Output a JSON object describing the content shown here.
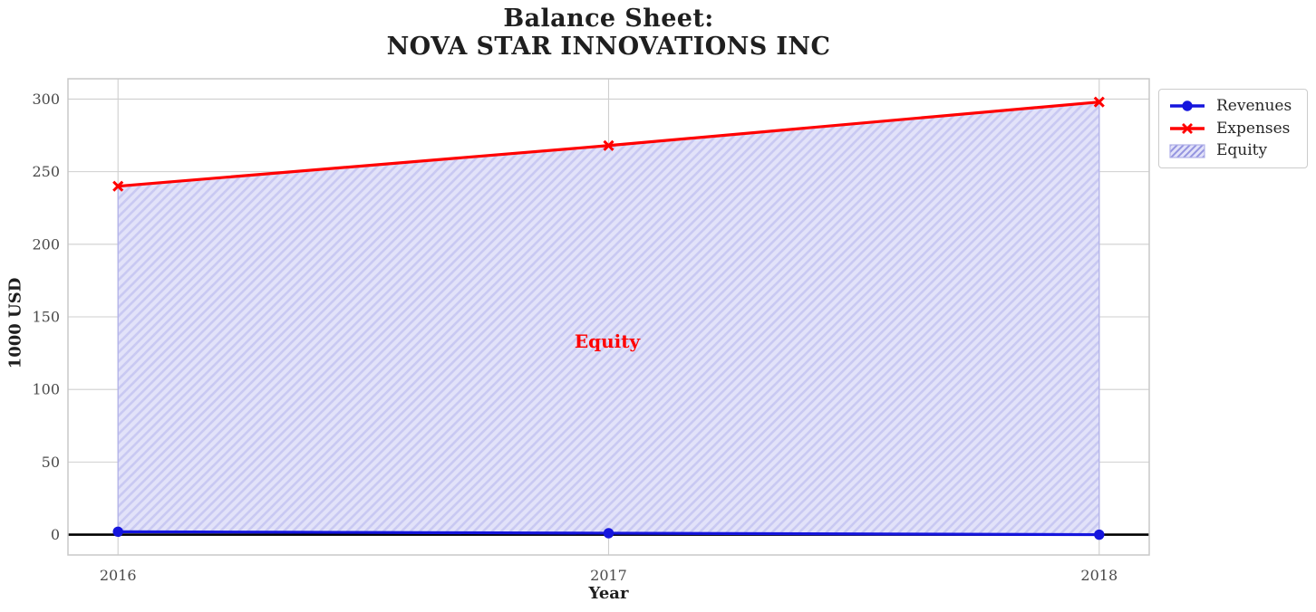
{
  "title": {
    "line1": "Balance Sheet:",
    "line2": "NOVA STAR INNOVATIONS INC"
  },
  "x_axis": {
    "label": "Year"
  },
  "y_axis": {
    "label": "1000 USD"
  },
  "annotation": {
    "text": "Equity"
  },
  "legend": {
    "position": "upper right",
    "items": [
      {
        "label": "Revenues",
        "swatch": "blue-line-circle-marker"
      },
      {
        "label": "Expenses",
        "swatch": "red-line-x-marker"
      },
      {
        "label": "Equity",
        "swatch": "hatched-patch"
      }
    ]
  },
  "colors": {
    "revenues": "#1515dd",
    "expenses": "#ff0000",
    "equity_fill": "#e2e2f9",
    "equity_hatch": "#c9c9f2",
    "equity_edge": "#b2b2e8",
    "legend_hatch": "#9494e0",
    "annotation_text": "#ff0000",
    "grid": "#cfcfcf",
    "axis_border": "#c8c8c8",
    "tick_label": "#4a4a4a",
    "title_text": "#1f1f1f",
    "zero_line": "#000000"
  },
  "chart_data": {
    "type": "line",
    "title": "Balance Sheet:\nNOVA STAR INNOVATIONS INC",
    "xlabel": "Year",
    "ylabel": "1000 USD",
    "x": [
      2016,
      2017,
      2018
    ],
    "series": [
      {
        "name": "Revenues",
        "values": [
          2,
          1,
          0
        ],
        "color": "#1515dd",
        "marker": "circle"
      },
      {
        "name": "Expenses",
        "values": [
          240,
          268,
          298
        ],
        "color": "#ff0000",
        "marker": "x"
      }
    ],
    "area": {
      "name": "Equity",
      "lower_series": "Revenues",
      "upper_series": "Expenses",
      "values": [
        238,
        267,
        298
      ],
      "fill_color": "#e2e2f9",
      "hatch": "/",
      "hatch_color": "#c9c9f2",
      "edge_color": "#b2b2e8"
    },
    "annotation": {
      "text": "Equity",
      "x": 2017,
      "y": 133,
      "color": "#ff0000"
    },
    "xticks": [
      2016,
      2017,
      2018
    ],
    "yticks": [
      0,
      50,
      100,
      150,
      200,
      250,
      300
    ],
    "xlim": [
      2015.898,
      2018.102
    ],
    "ylim": [
      -14,
      314
    ],
    "grid": true,
    "zero_line": true,
    "legend_entries": [
      "Revenues",
      "Expenses",
      "Equity"
    ],
    "legend_position": "upper right"
  }
}
